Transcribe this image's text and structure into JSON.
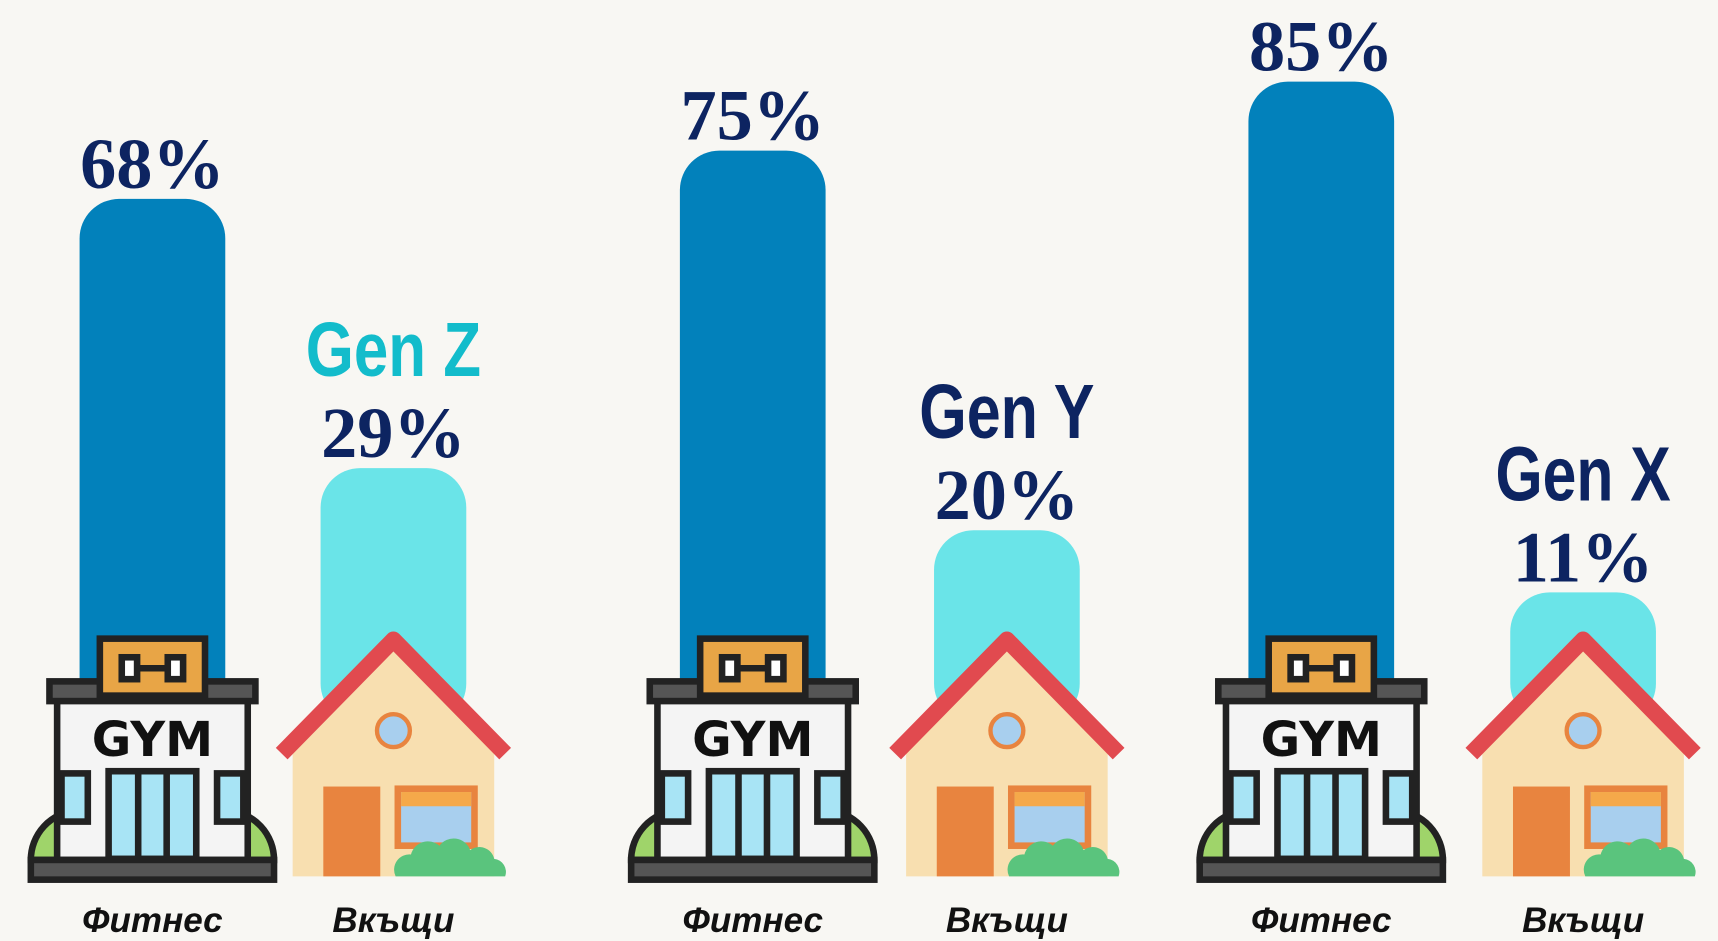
{
  "chart_data": {
    "type": "bar",
    "categories": [
      "Gen Z",
      "Gen Y",
      "Gen X"
    ],
    "category_colors": [
      "#13bccb",
      "#0d2461",
      "#0d2461"
    ],
    "series": [
      {
        "name": "Фитнес",
        "color": "#0281bb",
        "values": [
          68,
          75,
          85
        ],
        "value_labels": [
          "68%",
          "75%",
          "85%"
        ]
      },
      {
        "name": "Вкъщи",
        "color": "#6ae4e8",
        "values": [
          29,
          20,
          11
        ],
        "value_labels": [
          "29%",
          "20%",
          "11%"
        ]
      }
    ]
  }
}
